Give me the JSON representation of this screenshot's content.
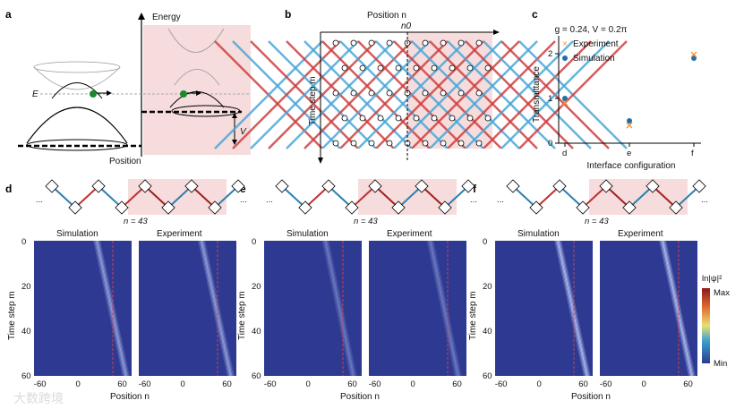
{
  "panel_labels": [
    "a",
    "b",
    "c",
    "d",
    "e",
    "f"
  ],
  "a": {
    "energy": "Energy",
    "position": "Position",
    "E": "E",
    "V": "V"
  },
  "b": {
    "position": "Position n",
    "n0": "n0",
    "time": "Time step m"
  },
  "c": {
    "title": "g = 0.24, V = 0.2π",
    "chart_data": {
      "type": "scatter",
      "title": "g = 0.24, V = 0.2π",
      "xlabel": "Interface configuration",
      "ylabel": "Transmittance",
      "categories": [
        "d",
        "e",
        "f"
      ],
      "ylim": [
        0,
        2.4
      ],
      "yticks": [
        0,
        1,
        2
      ],
      "legend": "top-left",
      "series": [
        {
          "name": "Experiment",
          "marker": "x",
          "color": "#f0923a",
          "values": [
            0.9,
            0.4,
            1.98
          ]
        },
        {
          "name": "Simulation",
          "marker": "o",
          "color": "#1f6fa8",
          "values": [
            1.0,
            0.5,
            1.9
          ]
        }
      ]
    }
  },
  "heatmaps": {
    "sim": "Simulation",
    "exp": "Experiment",
    "n_label": "n = 43",
    "dots": "...",
    "ylabel": "Time step m",
    "xlabel": "Position n",
    "xticks": [
      "-60",
      "0",
      "60"
    ],
    "yticks": [
      "0",
      "20",
      "40",
      "60"
    ],
    "colorbar": {
      "label": "ln|ψ|²",
      "max": "Max",
      "min": "Min"
    },
    "interface_n": 43,
    "panels": [
      {
        "id": "d",
        "start_n": 20,
        "end_n": 62,
        "intensity": 0.7
      },
      {
        "id": "e",
        "start_n": 18,
        "end_n": 58,
        "intensity": 0.45
      },
      {
        "id": "f",
        "start_n": 20,
        "end_n": 62,
        "intensity": 0.9
      }
    ]
  },
  "watermark": "大数跨境"
}
